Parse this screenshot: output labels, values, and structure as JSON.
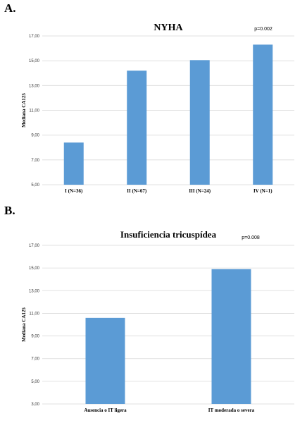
{
  "panels": {
    "a_label": "A.",
    "b_label": "B."
  },
  "chart_data": [
    {
      "type": "bar",
      "title": "NYHA",
      "ylabel": "Mediana CA125",
      "xlabel": "",
      "categories": [
        "I (N=36)",
        "II (N=67)",
        "III (N=24)",
        "IV (N=1)"
      ],
      "values": [
        8.4,
        14.2,
        15.05,
        16.3
      ],
      "ylim": [
        5,
        17
      ],
      "yticks": [
        "5,00",
        "7,00",
        "9,00",
        "11,00",
        "13,00",
        "15,00",
        "17,00"
      ],
      "annotation": "p=0.002",
      "grid": true,
      "color": "#5b9bd5"
    },
    {
      "type": "bar",
      "title": "Insuficiencia tricuspídea",
      "ylabel": "Mediana CA125",
      "xlabel": "",
      "categories": [
        "Ausencia o IT ligera",
        "IT moderada o severa"
      ],
      "values": [
        10.6,
        14.9
      ],
      "ylim": [
        3,
        17
      ],
      "yticks": [
        "3,00",
        "5,00",
        "7,00",
        "9,00",
        "11,00",
        "13,00",
        "15,00",
        "17,00"
      ],
      "annotation": "p=0.008",
      "grid": true,
      "color": "#5b9bd5"
    }
  ]
}
